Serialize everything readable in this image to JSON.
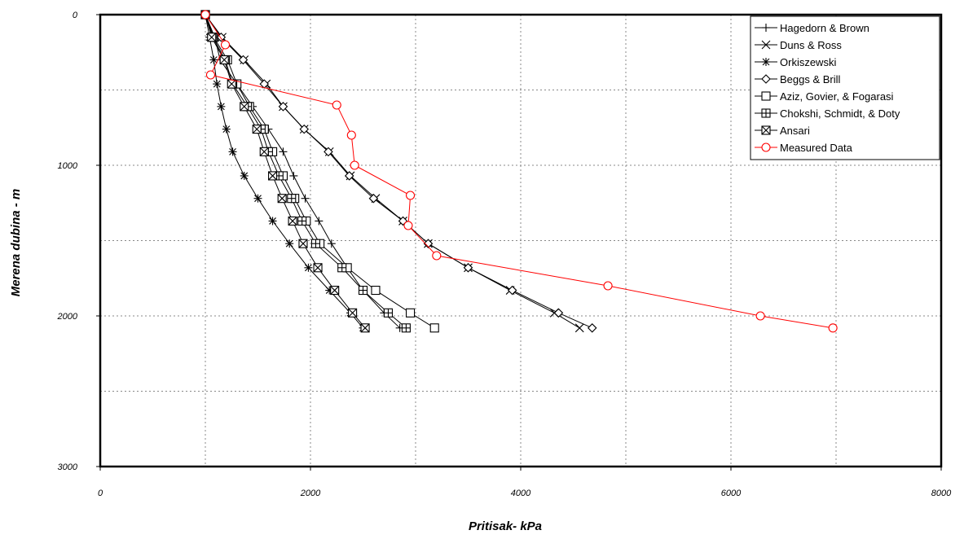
{
  "chart_data": {
    "type": "line",
    "xlabel": "Pritisak- kPa",
    "ylabel": "Merena dubina - m",
    "xlim": [
      0,
      8000
    ],
    "ylim": [
      3000,
      0
    ],
    "y_inverted": true,
    "grid": true,
    "legend_position": "top-right",
    "xticks": [
      0,
      2000,
      4000,
      6000,
      8000
    ],
    "yticks": [
      0,
      1000,
      2000,
      3000
    ],
    "series": [
      {
        "name": "Hagedorn & Brown",
        "marker": "plus",
        "color": "#000000",
        "points": [
          [
            1000,
            0
          ],
          [
            1090,
            150
          ],
          [
            1140,
            300
          ],
          [
            1300,
            460
          ],
          [
            1450,
            610
          ],
          [
            1600,
            760
          ],
          [
            1740,
            910
          ],
          [
            1840,
            1070
          ],
          [
            1950,
            1220
          ],
          [
            2080,
            1370
          ],
          [
            2200,
            1520
          ],
          [
            2350,
            1680
          ],
          [
            2500,
            1830
          ],
          [
            2700,
            1980
          ],
          [
            2850,
            2080
          ]
        ]
      },
      {
        "name": "Duns & Ross",
        "marker": "x",
        "color": "#000000",
        "points": [
          [
            1000,
            0
          ],
          [
            1160,
            150
          ],
          [
            1370,
            300
          ],
          [
            1580,
            460
          ],
          [
            1740,
            610
          ],
          [
            1940,
            760
          ],
          [
            2180,
            910
          ],
          [
            2380,
            1070
          ],
          [
            2620,
            1220
          ],
          [
            2880,
            1370
          ],
          [
            3120,
            1520
          ],
          [
            3500,
            1680
          ],
          [
            3900,
            1830
          ],
          [
            4320,
            1980
          ],
          [
            4560,
            2080
          ]
        ]
      },
      {
        "name": "Orkiszewski",
        "marker": "asterisk",
        "color": "#000000",
        "points": [
          [
            1000,
            0
          ],
          [
            1040,
            150
          ],
          [
            1080,
            300
          ],
          [
            1110,
            460
          ],
          [
            1150,
            610
          ],
          [
            1200,
            760
          ],
          [
            1260,
            910
          ],
          [
            1370,
            1070
          ],
          [
            1500,
            1220
          ],
          [
            1640,
            1370
          ],
          [
            1800,
            1520
          ],
          [
            1980,
            1680
          ],
          [
            2180,
            1830
          ],
          [
            2380,
            1980
          ],
          [
            2500,
            2080
          ]
        ]
      },
      {
        "name": "Beggs & Brill",
        "marker": "diamond",
        "color": "#000000",
        "points": [
          [
            1000,
            0
          ],
          [
            1150,
            150
          ],
          [
            1360,
            300
          ],
          [
            1560,
            460
          ],
          [
            1740,
            610
          ],
          [
            1940,
            760
          ],
          [
            2170,
            910
          ],
          [
            2370,
            1070
          ],
          [
            2600,
            1220
          ],
          [
            2880,
            1370
          ],
          [
            3120,
            1520
          ],
          [
            3500,
            1680
          ],
          [
            3920,
            1830
          ],
          [
            4360,
            1980
          ],
          [
            4680,
            2080
          ]
        ]
      },
      {
        "name": "Aziz, Govier, & Fogarasi",
        "marker": "square",
        "color": "#000000",
        "points": [
          [
            1000,
            0
          ],
          [
            1080,
            150
          ],
          [
            1210,
            300
          ],
          [
            1300,
            460
          ],
          [
            1420,
            610
          ],
          [
            1560,
            760
          ],
          [
            1640,
            910
          ],
          [
            1740,
            1070
          ],
          [
            1850,
            1220
          ],
          [
            1960,
            1370
          ],
          [
            2090,
            1520
          ],
          [
            2350,
            1680
          ],
          [
            2620,
            1830
          ],
          [
            2950,
            1980
          ],
          [
            3180,
            2080
          ]
        ]
      },
      {
        "name": "Chokshi, Schmidt, & Doty",
        "marker": "square-plus",
        "color": "#000000",
        "points": [
          [
            1000,
            0
          ],
          [
            1070,
            150
          ],
          [
            1190,
            300
          ],
          [
            1260,
            460
          ],
          [
            1400,
            610
          ],
          [
            1530,
            760
          ],
          [
            1600,
            910
          ],
          [
            1700,
            1070
          ],
          [
            1820,
            1220
          ],
          [
            1920,
            1370
          ],
          [
            2050,
            1520
          ],
          [
            2300,
            1680
          ],
          [
            2500,
            1830
          ],
          [
            2740,
            1980
          ],
          [
            2910,
            2080
          ]
        ]
      },
      {
        "name": "Ansari",
        "marker": "square-x",
        "color": "#000000",
        "points": [
          [
            1000,
            0
          ],
          [
            1060,
            150
          ],
          [
            1180,
            300
          ],
          [
            1250,
            460
          ],
          [
            1370,
            610
          ],
          [
            1490,
            760
          ],
          [
            1560,
            910
          ],
          [
            1640,
            1070
          ],
          [
            1730,
            1220
          ],
          [
            1830,
            1370
          ],
          [
            1930,
            1520
          ],
          [
            2070,
            1680
          ],
          [
            2230,
            1830
          ],
          [
            2400,
            1980
          ],
          [
            2520,
            2080
          ]
        ]
      },
      {
        "name": "Measured Data",
        "marker": "circle",
        "color": "#ff0000",
        "points": [
          [
            1000,
            0
          ],
          [
            1190,
            200
          ],
          [
            1050,
            400
          ],
          [
            2250,
            600
          ],
          [
            2390,
            800
          ],
          [
            2420,
            1000
          ],
          [
            2950,
            1200
          ],
          [
            2930,
            1400
          ],
          [
            3200,
            1600
          ],
          [
            4830,
            1800
          ],
          [
            6280,
            2000
          ],
          [
            6970,
            2080
          ]
        ]
      }
    ]
  }
}
